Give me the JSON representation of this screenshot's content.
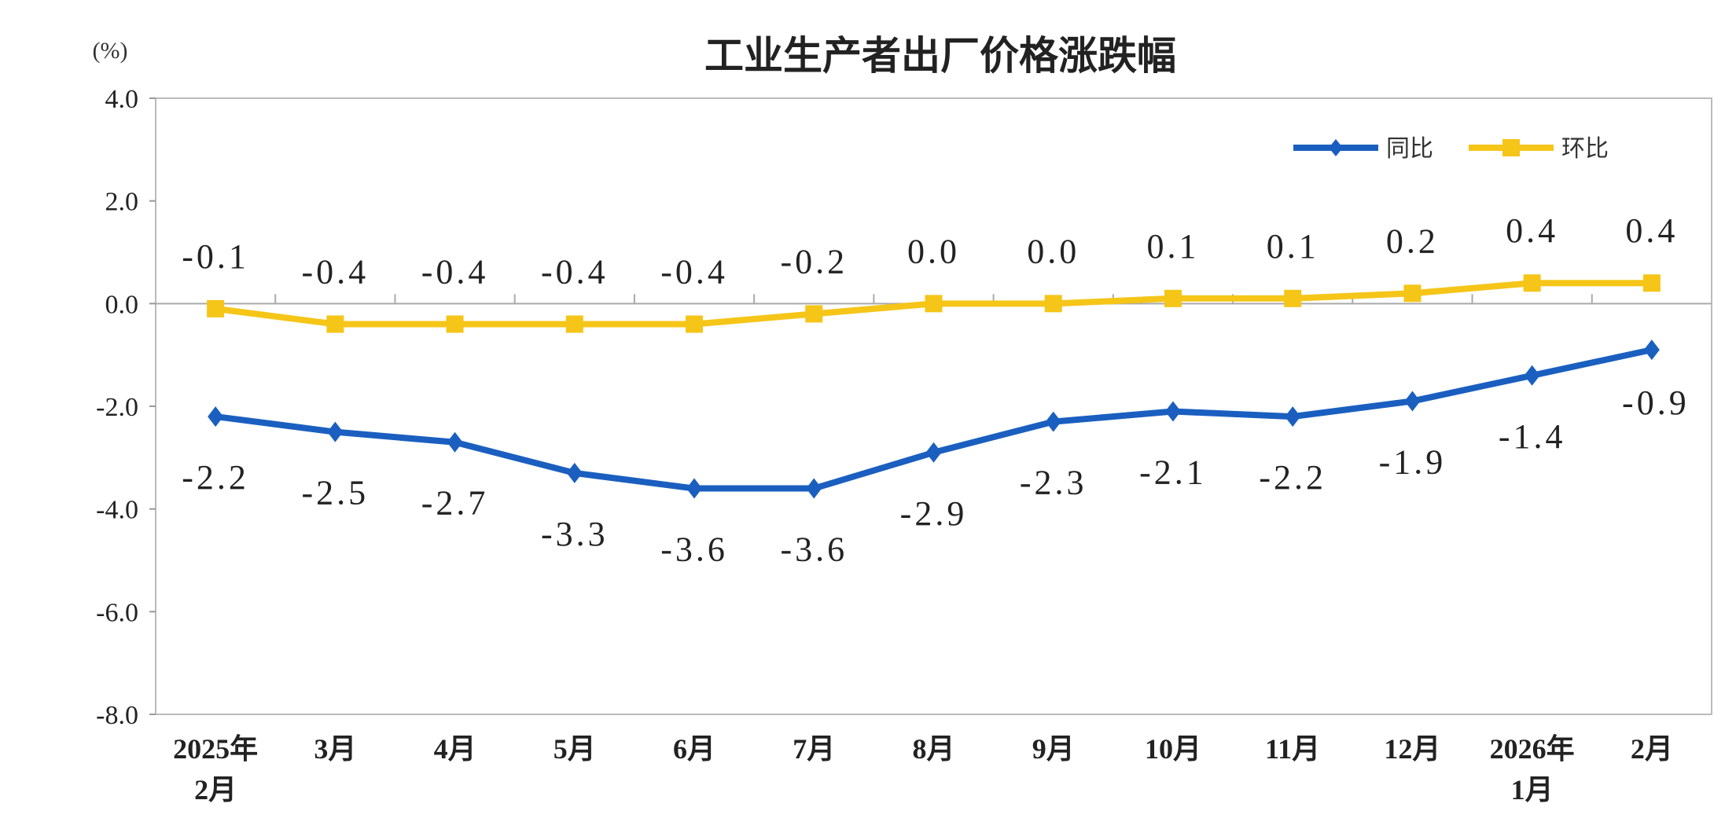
{
  "chart_data": {
    "type": "line",
    "title": "工业生产者出厂价格涨跌幅",
    "ylabel": "(%)",
    "ylim": [
      -8.0,
      4.0
    ],
    "yticks": [
      "4.0",
      "2.0",
      "0.0",
      "-2.0",
      "-4.0",
      "-6.0",
      "-8.0"
    ],
    "ytick_values": [
      4,
      2,
      0,
      -2,
      -4,
      -6,
      -8
    ],
    "categories": [
      [
        "2025年",
        "2月"
      ],
      [
        "3月"
      ],
      [
        "4月"
      ],
      [
        "5月"
      ],
      [
        "6月"
      ],
      [
        "7月"
      ],
      [
        "8月"
      ],
      [
        "9月"
      ],
      [
        "10月"
      ],
      [
        "11月"
      ],
      [
        "12月"
      ],
      [
        "2026年",
        "1月"
      ],
      [
        "2月"
      ]
    ],
    "grid": false,
    "legend_position": "top-right",
    "series": [
      {
        "name": "同比",
        "color": "#1a5fc0",
        "marker": "diamond",
        "values": [
          -2.2,
          -2.5,
          -2.7,
          -3.3,
          -3.6,
          -3.6,
          -2.9,
          -2.3,
          -2.1,
          -2.2,
          -1.9,
          -1.4,
          -0.9
        ],
        "labels": [
          "-2.2",
          "-2.5",
          "-2.7",
          "-3.3",
          "-3.6",
          "-3.6",
          "-2.9",
          "-2.3",
          "-2.1",
          "-2.2",
          "-1.9",
          "-1.4",
          "-0.9"
        ],
        "label_position": "below"
      },
      {
        "name": "环比",
        "color": "#f5c518",
        "marker": "square",
        "values": [
          -0.1,
          -0.4,
          -0.4,
          -0.4,
          -0.4,
          -0.2,
          0.0,
          0.0,
          0.1,
          0.1,
          0.2,
          0.4,
          0.4
        ],
        "labels": [
          "-0.1",
          "-0.4",
          "-0.4",
          "-0.4",
          "-0.4",
          "-0.2",
          "0.0",
          "0.0",
          "0.1",
          "0.1",
          "0.2",
          "0.4",
          "0.4"
        ],
        "label_position": "above"
      }
    ]
  }
}
